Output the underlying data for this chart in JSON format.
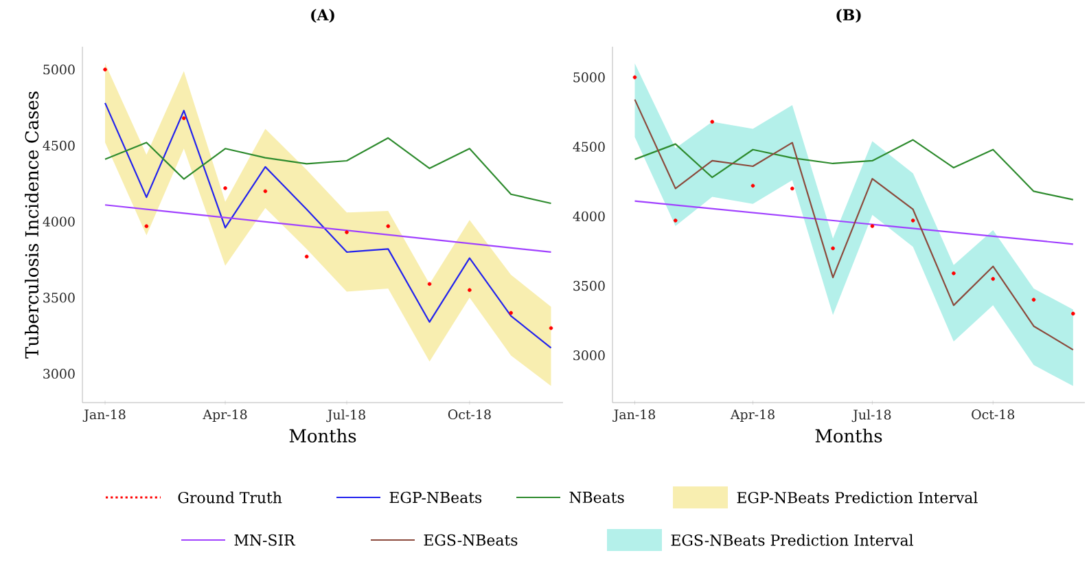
{
  "chart_data": [
    {
      "type": "line",
      "title": "(A)",
      "xlabel": "Months",
      "ylabel": "Tuberculosis Incidence Cases",
      "x": [
        "2018-01",
        "2018-02",
        "2018-03",
        "2018-04",
        "2018-05",
        "2018-06",
        "2018-07",
        "2018-08",
        "2018-09",
        "2018-10",
        "2018-11",
        "2018-12"
      ],
      "xlim": [
        "2017-12-15",
        "2018-12-10"
      ],
      "xticks": [
        {
          "value": "2018-01",
          "label": "Jan-18"
        },
        {
          "value": "2018-04",
          "label": "Apr-18"
        },
        {
          "value": "2018-07",
          "label": "Jul-18"
        },
        {
          "value": "2018-10",
          "label": "Oct-18"
        }
      ],
      "ylim": [
        2810,
        5150
      ],
      "yticks": [
        3000,
        3500,
        4000,
        4500,
        5000
      ],
      "legend": "bottom",
      "grid": false,
      "series": [
        {
          "name": "Ground Truth",
          "type": "scatter",
          "marker": "circle",
          "color": "#ff0000",
          "values": [
            5000,
            3970,
            4680,
            4220,
            4200,
            3770,
            3930,
            3970,
            3590,
            3550,
            3400,
            3300
          ]
        },
        {
          "name": "EGP-NBeats",
          "color": "#2222ee",
          "line_style": "solid",
          "values": [
            4780,
            4160,
            4730,
            3960,
            4360,
            4080,
            3800,
            3820,
            3340,
            3760,
            3380,
            3170
          ]
        },
        {
          "name": "NBeats",
          "color": "#2e8b2e",
          "line_style": "solid",
          "values": [
            4410,
            4520,
            4280,
            4480,
            4420,
            4380,
            4400,
            4550,
            4350,
            4480,
            4180,
            4120
          ]
        },
        {
          "name": "EGP-NBeats Prediction Interval",
          "type": "area",
          "color": "#f8eeb0",
          "values": [
            null,
            null,
            null,
            null,
            null,
            null,
            null,
            null,
            null,
            null,
            null,
            null
          ],
          "lower": [
            4520,
            3910,
            4480,
            3710,
            4090,
            3820,
            3540,
            3560,
            3080,
            3500,
            3120,
            2920
          ],
          "upper": [
            5040,
            4440,
            4990,
            4130,
            4610,
            4340,
            4060,
            4070,
            3590,
            4010,
            3650,
            3440
          ]
        },
        {
          "name": "MN-SIR",
          "color": "#a040ff",
          "line_style": "solid",
          "x": [
            "2018-01",
            "2018-12"
          ],
          "values": [
            4110,
            3800
          ]
        }
      ]
    },
    {
      "type": "line",
      "title": "(B)",
      "xlabel": "Months",
      "x": [
        "2018-01",
        "2018-02",
        "2018-03",
        "2018-04",
        "2018-05",
        "2018-06",
        "2018-07",
        "2018-08",
        "2018-09",
        "2018-10",
        "2018-11",
        "2018-12"
      ],
      "xlim": [
        "2017-12-15",
        "2018-12-10"
      ],
      "xticks": [
        {
          "value": "2018-01",
          "label": "Jan-18"
        },
        {
          "value": "2018-04",
          "label": "Apr-18"
        },
        {
          "value": "2018-07",
          "label": "Jul-18"
        },
        {
          "value": "2018-10",
          "label": "Oct-18"
        }
      ],
      "ylim": [
        2660,
        5220
      ],
      "yticks": [
        3000,
        3500,
        4000,
        4500,
        5000
      ],
      "legend": "bottom",
      "grid": false,
      "series": [
        {
          "name": "Ground Truth",
          "type": "scatter",
          "marker": "circle",
          "color": "#ff0000",
          "values": [
            5000,
            3970,
            4680,
            4220,
            4200,
            3770,
            3930,
            3970,
            3590,
            3550,
            3400,
            3300
          ]
        },
        {
          "name": "NBeats",
          "color": "#2e8b2e",
          "line_style": "solid",
          "values": [
            4410,
            4520,
            4280,
            4480,
            4420,
            4380,
            4400,
            4550,
            4350,
            4480,
            4180,
            4120
          ]
        },
        {
          "name": "MN-SIR",
          "color": "#a040ff",
          "line_style": "solid",
          "x": [
            "2018-01",
            "2018-12"
          ],
          "values": [
            4110,
            3800
          ]
        },
        {
          "name": "EGS-NBeats",
          "color": "#8b4a3c",
          "line_style": "solid",
          "values": [
            4840,
            4200,
            4400,
            4360,
            4530,
            3560,
            4270,
            4050,
            3360,
            3640,
            3210,
            3040
          ]
        },
        {
          "name": "EGS-NBeats Prediction Interval",
          "type": "area",
          "color": "#b4f0ea",
          "values": [
            null,
            null,
            null,
            null,
            null,
            null,
            null,
            null,
            null,
            null,
            null,
            null
          ],
          "lower": [
            4570,
            3930,
            4140,
            4090,
            4260,
            3290,
            4010,
            3780,
            3100,
            3360,
            2930,
            2780
          ],
          "upper": [
            5100,
            4490,
            4680,
            4630,
            4800,
            3840,
            4540,
            4310,
            3650,
            3900,
            3480,
            3330
          ]
        }
      ]
    }
  ]
}
